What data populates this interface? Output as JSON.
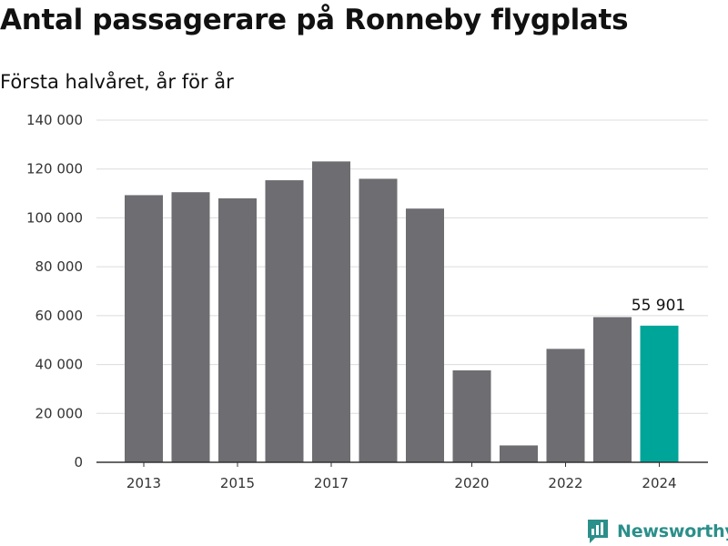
{
  "title": "Antal passagerare på Ronneby flygplats",
  "subtitle": "Första halvåret, år för år",
  "brand": {
    "name": "Newsworthy",
    "icon": "newsworthy-logo-icon",
    "color": "#2b8f8a"
  },
  "colors": {
    "bar": "#6d6d72",
    "highlight": "#00a59a",
    "grid": "#dcdcdc",
    "axis": "#333333"
  },
  "chart_data": {
    "type": "bar",
    "categories": [
      "2013",
      "2014",
      "2015",
      "2016",
      "2017",
      "2018",
      "2019",
      "2020",
      "2021",
      "2022",
      "2023",
      "2024"
    ],
    "values": [
      109300,
      110500,
      108000,
      115400,
      123100,
      116000,
      103800,
      37600,
      6900,
      46400,
      59400,
      55901
    ],
    "highlight_index": 11,
    "annotation": {
      "index": 11,
      "text": "55 901"
    },
    "x_tick_labels": [
      {
        "index": 0,
        "text": "2013"
      },
      {
        "index": 2,
        "text": "2015"
      },
      {
        "index": 4,
        "text": "2017"
      },
      {
        "index": 7,
        "text": "2020"
      },
      {
        "index": 9,
        "text": "2022"
      },
      {
        "index": 11,
        "text": "2024"
      }
    ],
    "y_ticks": [
      {
        "value": 0,
        "text": "0"
      },
      {
        "value": 20000,
        "text": "20 000"
      },
      {
        "value": 40000,
        "text": "40 000"
      },
      {
        "value": 60000,
        "text": "60 000"
      },
      {
        "value": 80000,
        "text": "80 000"
      },
      {
        "value": 100000,
        "text": "100 000"
      },
      {
        "value": 120000,
        "text": "120 000"
      },
      {
        "value": 140000,
        "text": "140 000"
      }
    ],
    "ylim": [
      0,
      140000
    ],
    "grid": true,
    "legend": "none"
  }
}
